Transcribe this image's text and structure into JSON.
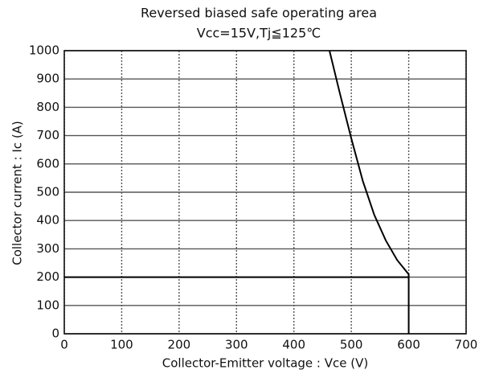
{
  "chart_data": {
    "type": "line",
    "title": "Reversed biased safe operating area",
    "subtitle": "Vcc=15V,Tj≦125℃",
    "x_label": "Collector-Emitter voltage : Vce (V)",
    "y_label": "Collector current : Ic (A)",
    "xlim": [
      0,
      700
    ],
    "xticks": [
      0,
      100,
      200,
      300,
      400,
      500,
      600,
      700
    ],
    "ylim": [
      0,
      1000
    ],
    "yticks": [
      0,
      100,
      200,
      300,
      400,
      500,
      600,
      700,
      800,
      900,
      1000
    ],
    "grid": true,
    "series": [
      {
        "color": "#000000",
        "x": [
          0,
          600
        ],
        "values": [
          200,
          200
        ]
      },
      {
        "color": "#000000",
        "x": [
          462,
          480,
          500,
          520,
          540,
          560,
          580,
          600,
          600
        ],
        "values": [
          1000,
          850,
          690,
          540,
          420,
          330,
          260,
          210,
          0
        ]
      }
    ]
  }
}
